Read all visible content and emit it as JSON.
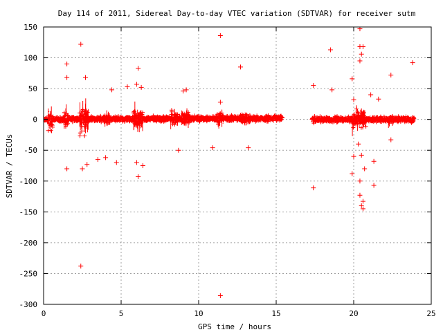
{
  "chart_data": {
    "type": "scatter",
    "title": "Day 114 of 2011, Sidereal Day-to-day VTEC variation (SDTVAR) for receiver sutm",
    "xlabel": "GPS time / hours",
    "ylabel": "SDTVAR / TECUs",
    "xlim": [
      0,
      25
    ],
    "ylim": [
      -300,
      150
    ],
    "xticks": [
      "0",
      "5",
      "10",
      "15",
      "20",
      "25"
    ],
    "xtick_values": [
      0,
      5,
      10,
      15,
      20,
      25
    ],
    "yticks": [
      "150",
      "100",
      "50",
      "0",
      "-50",
      "-100",
      "-150",
      "-200",
      "-250",
      "-300"
    ],
    "ytick_values": [
      150,
      100,
      50,
      0,
      -50,
      -100,
      -150,
      -200,
      -250,
      -300
    ],
    "grid": true,
    "grid_style": "dotted",
    "marker": "+",
    "error_bars": true,
    "color": "#ff0000",
    "dense_band": {
      "segments": [
        {
          "x_start": 0.0,
          "x_end": 15.4,
          "y_center_start": 0,
          "y_center_end": 2,
          "spread": 8
        },
        {
          "x_start": 17.3,
          "x_end": 23.9,
          "y_center_start": 0,
          "y_center_end": 0,
          "spread": 8
        }
      ],
      "bursts": [
        {
          "x_start": 0.3,
          "x_end": 0.6,
          "spread": 40
        },
        {
          "x_start": 1.3,
          "x_end": 1.6,
          "spread": 30
        },
        {
          "x_start": 2.3,
          "x_end": 2.9,
          "spread": 45
        },
        {
          "x_start": 3.9,
          "x_end": 4.3,
          "spread": 25
        },
        {
          "x_start": 5.8,
          "x_end": 6.4,
          "spread": 35
        },
        {
          "x_start": 8.2,
          "x_end": 8.7,
          "spread": 25
        },
        {
          "x_start": 8.9,
          "x_end": 9.4,
          "spread": 30
        },
        {
          "x_start": 11.2,
          "x_end": 11.6,
          "spread": 25
        },
        {
          "x_start": 12.7,
          "x_end": 13.3,
          "spread": 20
        },
        {
          "x_start": 19.9,
          "x_end": 20.8,
          "spread": 40
        },
        {
          "x_start": 22.2,
          "x_end": 22.5,
          "spread": 20
        }
      ]
    },
    "outliers": [
      {
        "x": 2.4,
        "y": 122
      },
      {
        "x": 2.4,
        "y": -238
      },
      {
        "x": 1.5,
        "y": 90
      },
      {
        "x": 1.5,
        "y": 68
      },
      {
        "x": 2.7,
        "y": 68
      },
      {
        "x": 1.5,
        "y": -80
      },
      {
        "x": 2.5,
        "y": -80
      },
      {
        "x": 2.8,
        "y": -73
      },
      {
        "x": 3.5,
        "y": -65
      },
      {
        "x": 4.0,
        "y": -62
      },
      {
        "x": 4.4,
        "y": 48
      },
      {
        "x": 5.4,
        "y": 53
      },
      {
        "x": 6.1,
        "y": 83
      },
      {
        "x": 6.0,
        "y": 57
      },
      {
        "x": 6.3,
        "y": 52
      },
      {
        "x": 6.1,
        "y": -93
      },
      {
        "x": 6.0,
        "y": -70
      },
      {
        "x": 6.4,
        "y": -75
      },
      {
        "x": 9.0,
        "y": 46
      },
      {
        "x": 9.2,
        "y": 48
      },
      {
        "x": 8.7,
        "y": -50
      },
      {
        "x": 10.9,
        "y": -46
      },
      {
        "x": 11.4,
        "y": 136
      },
      {
        "x": 11.4,
        "y": 28
      },
      {
        "x": 11.4,
        "y": -286
      },
      {
        "x": 12.7,
        "y": 85
      },
      {
        "x": 13.2,
        "y": -46
      },
      {
        "x": 17.4,
        "y": -111
      },
      {
        "x": 17.4,
        "y": 55
      },
      {
        "x": 18.5,
        "y": 113
      },
      {
        "x": 18.6,
        "y": 48
      },
      {
        "x": 20.4,
        "y": 147
      },
      {
        "x": 20.4,
        "y": 118
      },
      {
        "x": 20.6,
        "y": 118
      },
      {
        "x": 20.5,
        "y": 106
      },
      {
        "x": 20.4,
        "y": 95
      },
      {
        "x": 20.4,
        "y": -100
      },
      {
        "x": 20.4,
        "y": -123
      },
      {
        "x": 20.6,
        "y": -133
      },
      {
        "x": 20.6,
        "y": -145
      },
      {
        "x": 20.5,
        "y": -140
      },
      {
        "x": 20.7,
        "y": -80
      },
      {
        "x": 20.5,
        "y": -58
      },
      {
        "x": 19.9,
        "y": -88
      },
      {
        "x": 20.0,
        "y": -60
      },
      {
        "x": 21.1,
        "y": 40
      },
      {
        "x": 21.6,
        "y": 33
      },
      {
        "x": 21.3,
        "y": -68
      },
      {
        "x": 21.3,
        "y": -107
      },
      {
        "x": 22.4,
        "y": 72
      },
      {
        "x": 22.4,
        "y": -33
      },
      {
        "x": 23.8,
        "y": 92
      },
      {
        "x": 20.0,
        "y": 32
      },
      {
        "x": 19.9,
        "y": 66
      },
      {
        "x": 20.3,
        "y": -40
      },
      {
        "x": 4.7,
        "y": -70
      }
    ]
  }
}
